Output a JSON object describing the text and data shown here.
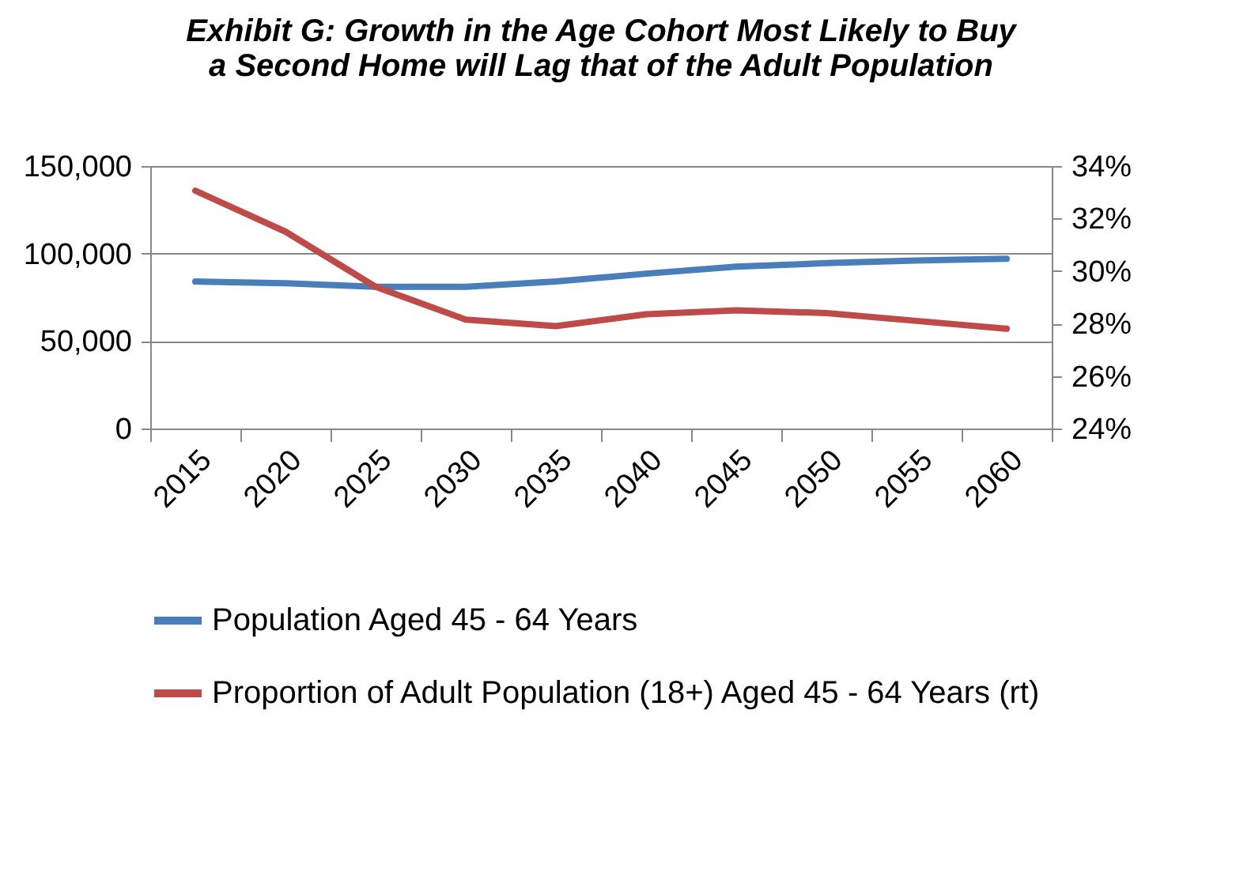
{
  "chart_data": {
    "type": "line",
    "title": [
      "Exhibit G: Growth in the Age Cohort Most Likely to Buy",
      "a Second Home will Lag that of the Adult Population"
    ],
    "categories": [
      "2015",
      "2020",
      "2025",
      "2030",
      "2035",
      "2040",
      "2045",
      "2050",
      "2055",
      "2060"
    ],
    "series": [
      {
        "name": "Population Aged 45 - 64 Years",
        "color": "#4a7ebb",
        "values": [
          84000,
          83000,
          81000,
          81000,
          84000,
          88500,
          92500,
          94500,
          96000,
          97000
        ]
      },
      {
        "name": "Proportion of Adult Population (18+) Aged 45 - 64 Years (rt)",
        "color": "#be4b48",
        "axis": "y2",
        "values": [
          33.06,
          31.5,
          29.4,
          28.15,
          27.9,
          28.35,
          28.5,
          28.4,
          28.1,
          27.8
        ]
      }
    ],
    "ylim": [
      0,
      150000
    ],
    "yticks": [
      {
        "value": 0,
        "label": "0"
      },
      {
        "value": 50000,
        "label": "50,000"
      },
      {
        "value": 100000,
        "label": "100,000"
      },
      {
        "value": 150000,
        "label": "150,000"
      }
    ],
    "y2lim": [
      24,
      34
    ],
    "y2ticks": [
      {
        "value": 24,
        "label": "24%"
      },
      {
        "value": 26,
        "label": "26%"
      },
      {
        "value": 28,
        "label": "28%"
      },
      {
        "value": 30,
        "label": "30%"
      },
      {
        "value": 32,
        "label": "32%"
      },
      {
        "value": 34,
        "label": "34%"
      }
    ],
    "grid": "y",
    "legend": "bottom",
    "marker": "none",
    "line_style": "solid"
  }
}
